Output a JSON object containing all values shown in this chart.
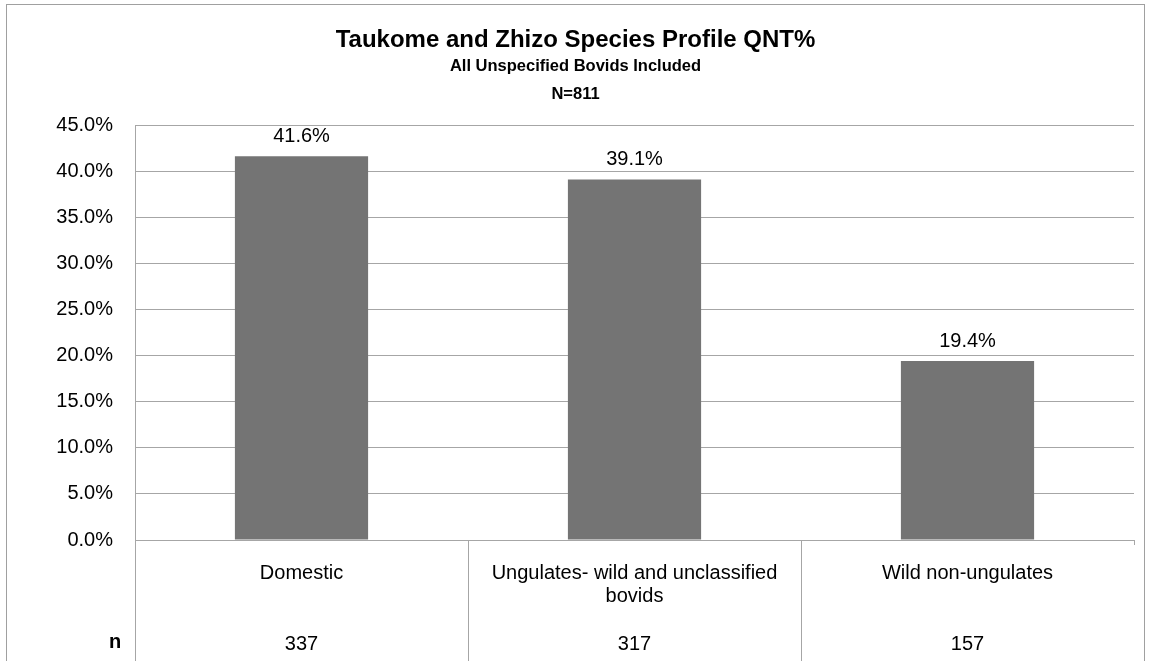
{
  "chart_data": {
    "type": "bar",
    "title": "Taukome and Zhizo Species Profile QNT%",
    "subtitle": "All Unspecified Bovids Included",
    "categories": [
      "Domestic",
      "Ungulates- wild and unclassified bovids",
      "Wild non-ungulates"
    ],
    "values": [
      41.6,
      39.1,
      19.4
    ],
    "color": "#747474",
    "value_labels": [
      "41.6%",
      "39.1%",
      "19.4%"
    ],
    "ylim": [
      0,
      45
    ],
    "yticks": [
      {
        "value": 0,
        "label": "0.0%"
      },
      {
        "value": 5,
        "label": "5.0%"
      },
      {
        "value": 10,
        "label": "10.0%"
      },
      {
        "value": 15,
        "label": "15.0%"
      },
      {
        "value": 20,
        "label": "20.0%"
      },
      {
        "value": 25,
        "label": "25.0%"
      },
      {
        "value": 30,
        "label": "30.0%"
      },
      {
        "value": 35,
        "label": "35.0%"
      },
      {
        "value": 40,
        "label": "40.0%"
      },
      {
        "value": 45,
        "label": "45.0%"
      }
    ],
    "grid": "y",
    "annotations": [
      "N=811",
      "n",
      "337",
      "317",
      "157"
    ]
  }
}
